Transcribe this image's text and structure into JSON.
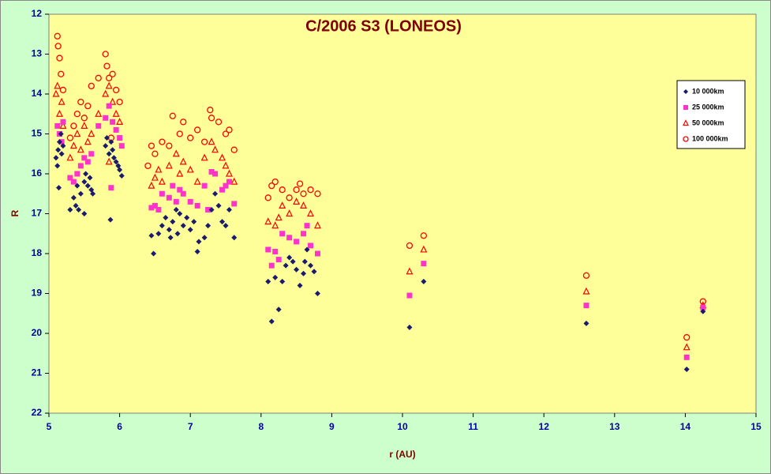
{
  "chart_data": {
    "type": "scatter",
    "title": "C/2006 S3 (LONEOS)",
    "xlabel": "r (AU)",
    "ylabel": "R",
    "xlim": [
      5,
      15
    ],
    "xticks": [
      5,
      6,
      7,
      8,
      9,
      10,
      11,
      12,
      13,
      14,
      15
    ],
    "ylim": [
      12,
      22
    ],
    "yticks": [
      12,
      13,
      14,
      15,
      16,
      17,
      18,
      19,
      20,
      21,
      22
    ],
    "y_inverted": true,
    "legend": "right",
    "series": [
      {
        "name": "10 000km",
        "color": "#1a1a6e",
        "marker": "diamond",
        "x": [
          5.1,
          5.12,
          5.13,
          5.15,
          5.17,
          5.14,
          5.18,
          5.2,
          5.3,
          5.35,
          5.38,
          5.4,
          5.42,
          5.45,
          5.5,
          5.52,
          5.55,
          5.58,
          5.6,
          5.62,
          5.5,
          5.8,
          5.82,
          5.85,
          5.87,
          5.9,
          5.92,
          5.95,
          5.98,
          6.0,
          6.03,
          5.88,
          6.45,
          6.48,
          6.55,
          6.6,
          6.65,
          6.7,
          6.72,
          6.75,
          6.8,
          6.82,
          6.85,
          6.9,
          6.95,
          7.0,
          7.05,
          7.1,
          7.12,
          7.2,
          7.25,
          7.3,
          7.35,
          7.4,
          7.45,
          7.5,
          7.55,
          7.62,
          8.1,
          8.15,
          8.2,
          8.25,
          8.3,
          8.35,
          8.4,
          8.45,
          8.5,
          8.55,
          8.6,
          8.62,
          8.65,
          8.7,
          8.75,
          8.8,
          10.1,
          10.3,
          12.6,
          14.02,
          14.25
        ],
        "values": [
          15.6,
          15.8,
          15.4,
          15.2,
          15.0,
          16.35,
          15.5,
          15.3,
          16.9,
          16.6,
          16.8,
          16.3,
          16.9,
          16.5,
          16.2,
          16.0,
          16.3,
          16.1,
          16.4,
          16.5,
          17.0,
          15.3,
          15.1,
          15.5,
          17.15,
          15.4,
          15.6,
          15.7,
          15.8,
          15.9,
          16.05,
          15.2,
          17.55,
          18.0,
          17.5,
          17.3,
          17.1,
          17.4,
          17.6,
          17.2,
          16.9,
          17.5,
          17.0,
          17.3,
          17.1,
          17.4,
          17.2,
          17.95,
          17.7,
          17.6,
          17.3,
          16.9,
          16.5,
          16.8,
          17.2,
          17.3,
          16.9,
          17.6,
          18.7,
          19.7,
          18.6,
          19.4,
          18.7,
          18.3,
          18.1,
          18.2,
          18.4,
          18.8,
          18.5,
          18.2,
          17.9,
          18.3,
          18.45,
          19.0,
          19.85,
          18.7,
          19.75,
          20.9,
          19.45
        ]
      },
      {
        "name": "25 000km",
        "color": "#ff33cc",
        "marker": "square",
        "x": [
          5.12,
          5.15,
          5.18,
          5.2,
          5.3,
          5.35,
          5.4,
          5.45,
          5.5,
          5.55,
          5.6,
          5.7,
          5.8,
          5.85,
          5.88,
          5.9,
          5.95,
          6.0,
          6.03,
          6.45,
          6.5,
          6.55,
          6.6,
          6.7,
          6.75,
          6.8,
          6.85,
          6.9,
          7.0,
          7.1,
          7.2,
          7.25,
          7.3,
          7.35,
          7.45,
          7.5,
          7.55,
          7.62,
          8.1,
          8.2,
          8.25,
          8.3,
          8.4,
          8.5,
          8.6,
          8.65,
          8.7,
          8.8,
          8.15,
          10.1,
          10.3,
          12.6,
          14.02,
          14.25
        ],
        "values": [
          14.8,
          15.0,
          15.2,
          14.7,
          16.1,
          16.2,
          16.0,
          15.8,
          15.6,
          15.7,
          15.5,
          14.8,
          14.6,
          14.3,
          16.35,
          14.7,
          14.9,
          15.1,
          15.3,
          16.85,
          16.8,
          16.9,
          16.5,
          16.6,
          16.3,
          16.7,
          16.4,
          16.5,
          16.7,
          16.8,
          16.3,
          16.9,
          15.95,
          16.0,
          16.4,
          16.3,
          16.2,
          16.75,
          17.9,
          17.95,
          18.15,
          17.5,
          17.6,
          17.7,
          17.5,
          17.3,
          17.8,
          18.0,
          18.3,
          19.05,
          18.25,
          19.3,
          20.6,
          19.35
        ]
      },
      {
        "name": "50 000km",
        "color": "#ff0000",
        "marker": "triangle",
        "x": [
          5.1,
          5.12,
          5.15,
          5.18,
          5.2,
          5.3,
          5.35,
          5.4,
          5.45,
          5.5,
          5.55,
          5.6,
          5.7,
          5.8,
          5.85,
          5.9,
          5.95,
          6.0,
          5.85,
          6.45,
          6.5,
          6.55,
          6.6,
          6.7,
          6.8,
          6.85,
          6.9,
          7.0,
          7.1,
          7.2,
          7.3,
          7.35,
          7.45,
          7.5,
          7.55,
          7.62,
          8.1,
          8.2,
          8.25,
          8.3,
          8.4,
          8.5,
          8.6,
          8.7,
          8.8,
          10.1,
          10.3,
          12.6,
          14.02,
          14.25
        ],
        "values": [
          14.0,
          13.8,
          14.5,
          14.2,
          14.8,
          15.6,
          15.3,
          15.0,
          15.4,
          14.8,
          15.2,
          15.0,
          14.5,
          14.0,
          13.8,
          14.2,
          14.5,
          14.7,
          15.7,
          16.3,
          16.1,
          15.9,
          16.2,
          15.8,
          15.5,
          16.0,
          15.7,
          15.9,
          16.2,
          15.6,
          15.2,
          15.4,
          15.6,
          15.8,
          16.0,
          16.2,
          17.2,
          17.3,
          17.1,
          16.8,
          17.0,
          16.7,
          16.8,
          17.0,
          17.3,
          18.45,
          17.9,
          18.95,
          20.35,
          19.3
        ]
      },
      {
        "name": "100 000km",
        "color": "#ff0000",
        "marker": "circle",
        "x": [
          5.12,
          5.13,
          5.15,
          5.17,
          5.2,
          5.3,
          5.35,
          5.4,
          5.45,
          5.5,
          5.55,
          5.6,
          5.7,
          5.8,
          5.82,
          5.85,
          5.9,
          5.95,
          6.0,
          5.88,
          6.4,
          6.45,
          6.5,
          6.6,
          6.7,
          6.75,
          6.85,
          6.9,
          7.0,
          7.1,
          7.2,
          7.28,
          7.3,
          7.4,
          7.5,
          7.55,
          7.62,
          8.1,
          8.15,
          8.2,
          8.3,
          8.4,
          8.5,
          8.55,
          8.6,
          8.7,
          8.8,
          10.1,
          10.3,
          12.6,
          14.02,
          14.25
        ],
        "values": [
          12.55,
          12.8,
          13.1,
          13.5,
          13.9,
          15.1,
          14.8,
          14.5,
          14.2,
          14.6,
          14.3,
          13.8,
          13.6,
          13.0,
          13.3,
          13.6,
          13.5,
          13.9,
          14.2,
          15.1,
          15.8,
          15.3,
          15.5,
          15.2,
          15.3,
          14.55,
          15.0,
          14.7,
          15.1,
          14.9,
          15.2,
          14.4,
          14.6,
          14.7,
          15.0,
          14.9,
          15.4,
          16.6,
          16.3,
          16.2,
          16.4,
          16.6,
          16.4,
          16.25,
          16.5,
          16.4,
          16.5,
          17.8,
          17.55,
          18.55,
          20.1,
          19.2
        ]
      }
    ]
  }
}
